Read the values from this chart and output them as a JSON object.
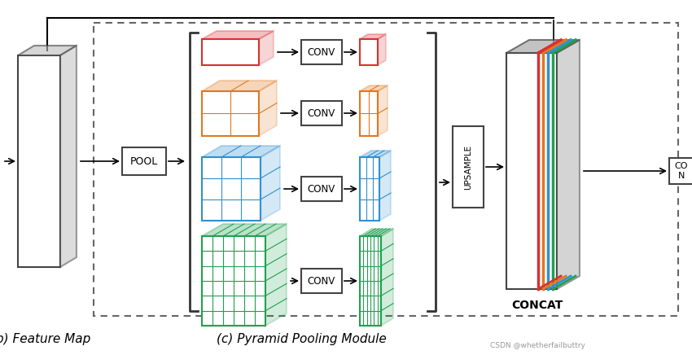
{
  "bg_color": "#ffffff",
  "title": "(c) Pyramid Pooling Module",
  "label_feature_map": "(b) Feature Map",
  "label_concat": "CONCAT",
  "colors": [
    "#d93030",
    "#e07820",
    "#3090d0",
    "#20a050"
  ],
  "figure_width": 8.5,
  "figure_height": 4.36,
  "dpi": 100
}
